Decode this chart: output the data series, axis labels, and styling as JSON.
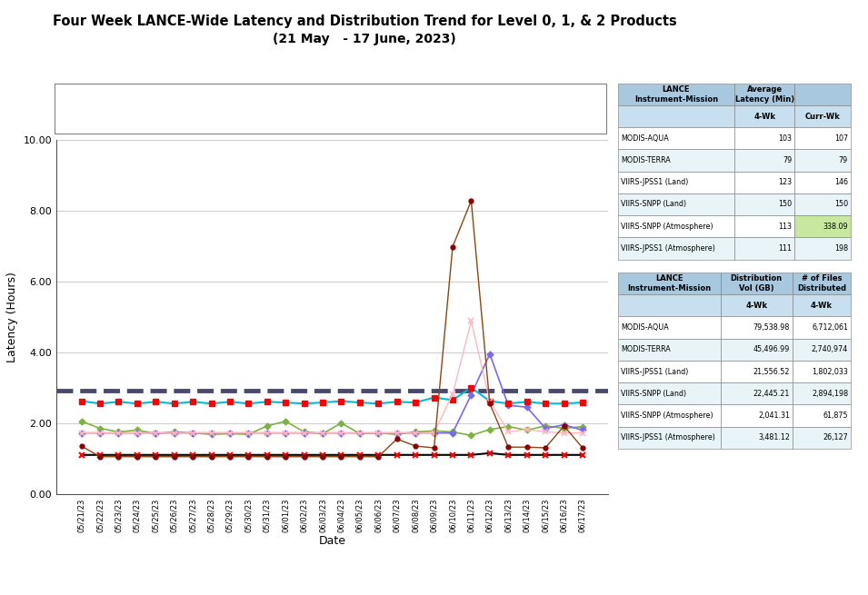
{
  "title_line1": "Four Week LANCE-Wide Latency and Distribution Trend for Level 0, 1, & 2 Products",
  "title_line2": "(21 May   - 17 June, 2023)",
  "xlabel": "Date",
  "ylabel": "Latency (Hours)",
  "ylim": [
    0.0,
    10.0
  ],
  "yticks": [
    0.0,
    2.0,
    4.0,
    6.0,
    8.0,
    10.0
  ],
  "dates": [
    "05/21/23",
    "05/22/23",
    "05/23/23",
    "05/24/23",
    "05/25/23",
    "05/26/23",
    "05/27/23",
    "05/28/23",
    "05/29/23",
    "05/30/23",
    "05/31/23",
    "06/01/23",
    "06/02/23",
    "06/03/23",
    "06/04/23",
    "06/05/23",
    "06/06/23",
    "06/07/23",
    "06/08/23",
    "06/09/23",
    "06/10/23",
    "06/11/23",
    "06/12/23",
    "06/13/23",
    "06/14/23",
    "06/15/23",
    "06/16/23",
    "06/17/23"
  ],
  "modis_aqua": [
    2.05,
    1.85,
    1.75,
    1.8,
    1.7,
    1.75,
    1.72,
    1.68,
    1.7,
    1.68,
    1.92,
    2.05,
    1.75,
    1.7,
    2.0,
    1.7,
    1.72,
    1.68,
    1.75,
    1.78,
    1.75,
    1.65,
    1.82,
    1.9,
    1.8,
    1.92,
    1.85,
    1.9
  ],
  "modis_terra": [
    1.1,
    1.1,
    1.1,
    1.1,
    1.1,
    1.1,
    1.1,
    1.1,
    1.1,
    1.1,
    1.1,
    1.1,
    1.1,
    1.1,
    1.1,
    1.1,
    1.1,
    1.1,
    1.1,
    1.1,
    1.1,
    1.1,
    1.15,
    1.1,
    1.1,
    1.1,
    1.1,
    1.1
  ],
  "viirs_jpss1_land": [
    1.72,
    1.72,
    1.72,
    1.72,
    1.72,
    1.72,
    1.72,
    1.72,
    1.72,
    1.72,
    1.72,
    1.72,
    1.72,
    1.72,
    1.72,
    1.72,
    1.72,
    1.72,
    1.72,
    1.72,
    1.72,
    2.8,
    3.95,
    2.5,
    2.45,
    1.85,
    1.95,
    1.8
  ],
  "viirs_snpp_land": [
    2.62,
    2.55,
    2.6,
    2.55,
    2.6,
    2.55,
    2.6,
    2.55,
    2.6,
    2.55,
    2.6,
    2.58,
    2.55,
    2.58,
    2.62,
    2.58,
    2.55,
    2.6,
    2.58,
    2.72,
    2.65,
    3.0,
    2.62,
    2.55,
    2.6,
    2.55,
    2.55,
    2.58
  ],
  "viirs_snpp_atmo": [
    1.72,
    1.72,
    1.72,
    1.72,
    1.72,
    1.72,
    1.72,
    1.72,
    1.72,
    1.72,
    1.72,
    1.72,
    1.72,
    1.72,
    1.72,
    1.72,
    1.72,
    1.72,
    1.72,
    1.72,
    2.82,
    4.88,
    2.62,
    1.75,
    1.82,
    1.75,
    1.72,
    1.72
  ],
  "viirs_jpss1_atmo": [
    1.35,
    1.05,
    1.05,
    1.05,
    1.05,
    1.05,
    1.05,
    1.05,
    1.05,
    1.05,
    1.05,
    1.05,
    1.05,
    1.05,
    1.05,
    1.05,
    1.05,
    1.55,
    1.35,
    1.3,
    6.98,
    8.28,
    2.55,
    1.32,
    1.32,
    1.3,
    1.92,
    1.3
  ],
  "latency_req": 2.92,
  "modis_aqua_color": "#7CB342",
  "modis_terra_color": "#000000",
  "viirs_jpss1_land_color": "#7B68EE",
  "viirs_snpp_land_color": "#00BCD4",
  "viirs_snpp_atmo_color": "#FFB6C1",
  "viirs_jpss1_atmo_color": "#8B4513",
  "latency_req_color": "#4a4a6a",
  "latency_table_rows": [
    [
      "MODIS-AQUA",
      "103",
      "107"
    ],
    [
      "MODIS-TERRA",
      "79",
      "79"
    ],
    [
      "VIIRS-JPSS1 (Land)",
      "123",
      "146"
    ],
    [
      "VIIRS-SNPP (Land)",
      "150",
      "150"
    ],
    [
      "VIIRS-SNPP (Atmosphere)",
      "113",
      "338.09"
    ],
    [
      "VIIRS-JPSS1 (Atmosphere)",
      "111",
      "198"
    ]
  ],
  "dist_table_rows": [
    [
      "MODIS-AQUA",
      "79,538.98",
      "6,712,061"
    ],
    [
      "MODIS-TERRA",
      "45,496.99",
      "2,740,974"
    ],
    [
      "VIIRS-JPSS1 (Land)",
      "21,556.52",
      "1,802,033"
    ],
    [
      "VIIRS-SNPP (Land)",
      "22,445.21",
      "2,894,198"
    ],
    [
      "VIIRS-SNPP (Atmosphere)",
      "2,041.31",
      "61,875"
    ],
    [
      "VIIRS-JPSS1 (Atmosphere)",
      "3,481.12",
      "26,127"
    ]
  ],
  "table_header_bg": "#a8c8e0",
  "table_subhdr_bg": "#c8dff0",
  "table_row_bg1": "#ffffff",
  "table_row_bg2": "#e8f4f8",
  "highlight_bg": "#c8e8a0"
}
